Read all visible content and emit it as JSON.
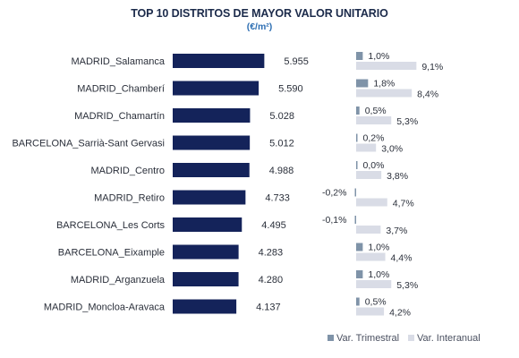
{
  "chart_data": {
    "type": "bar",
    "title": "TOP 10 DISTRITOS DE MAYOR VALOR UNITARIO",
    "subtitle": "(€/m²)",
    "categories": [
      "MADRID_Salamanca",
      "MADRID_Chamberí",
      "MADRID_Chamartín",
      "BARCELONA_Sarrià-Sant Gervasi",
      "MADRID_Centro",
      "MADRID_Retiro",
      "BARCELONA_Les Corts",
      "BARCELONA_Eixample",
      "MADRID_Arganzuela",
      "MADRID_Moncloa-Aravaca"
    ],
    "values": [
      5955,
      5590,
      5028,
      5012,
      4988,
      4733,
      4495,
      4283,
      4280,
      4137
    ],
    "value_labels": [
      "5.955",
      "5.590",
      "5.028",
      "5.012",
      "4.988",
      "4.733",
      "4.495",
      "4.283",
      "4.280",
      "4.137"
    ],
    "series": [
      {
        "name": "Var. Trimestral",
        "values": [
          1.0,
          1.8,
          0.5,
          0.2,
          0.0,
          -0.2,
          -0.1,
          1.0,
          1.0,
          0.5
        ],
        "labels": [
          "1,0%",
          "1,8%",
          "0,5%",
          "0,2%",
          "0,0%",
          "-0,2%",
          "-0,1%",
          "1,0%",
          "1,0%",
          "0,5%"
        ]
      },
      {
        "name": "Var. Interanual",
        "values": [
          9.1,
          8.4,
          5.3,
          3.0,
          3.8,
          4.7,
          3.7,
          4.4,
          5.3,
          4.2
        ],
        "labels": [
          "9,1%",
          "8,4%",
          "5,3%",
          "3,0%",
          "3,8%",
          "4,7%",
          "3,7%",
          "4,4%",
          "5,3%",
          "4,2%"
        ]
      }
    ],
    "legend_position": "bottom-right",
    "colors": {
      "main_bar": "#14235a",
      "trimestral": "#7f93a8",
      "interanual": "#d9dce6",
      "title": "#1b2a4a",
      "subtitle": "#2e6fb3"
    }
  }
}
